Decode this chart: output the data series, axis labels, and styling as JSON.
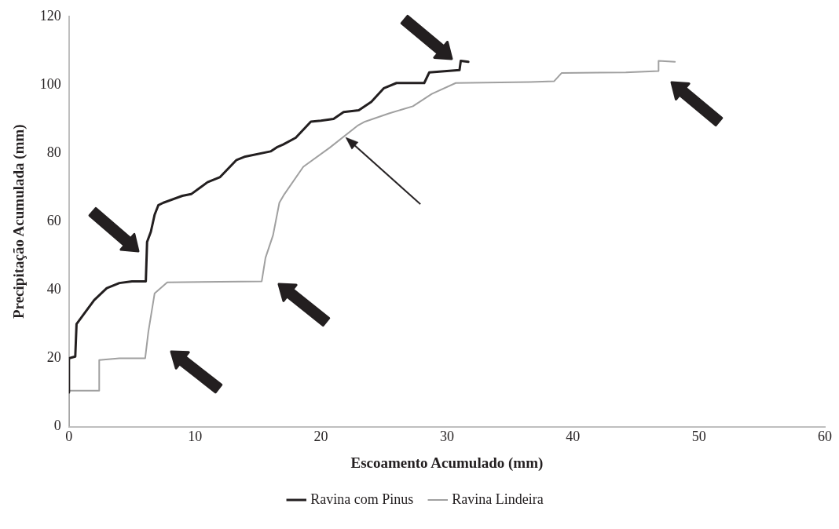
{
  "chart_data": {
    "type": "line",
    "xlabel": "Escoamento Acumulado (mm)",
    "ylabel": "Precipitação Acumulada (mm)",
    "xlim": [
      0,
      60
    ],
    "xticks": [
      0,
      10,
      20,
      30,
      40,
      50,
      60
    ],
    "ylim": [
      0,
      120
    ],
    "yticks": [
      0,
      20,
      40,
      60,
      80,
      100,
      120
    ],
    "grid": false,
    "legend": "bottom",
    "marker": "none",
    "line_style": "solid",
    "series": [
      {
        "name": "Ravina com Pinus",
        "color": "#231f20",
        "x": [
          0,
          0,
          0.5,
          0.6,
          1,
          2,
          3,
          4,
          5,
          6.1,
          6.2,
          6.5,
          6.8,
          7.1,
          7.5,
          9,
          9.7,
          11,
          12,
          13.3,
          14,
          16,
          16.5,
          17,
          18,
          19.2,
          20,
          21,
          21.8,
          23,
          24,
          25,
          26,
          28.2,
          28.6,
          30,
          31,
          31.1,
          31.7
        ],
        "values": [
          10,
          20,
          20.5,
          30,
          32,
          37,
          40.5,
          42,
          42.5,
          42.5,
          54,
          57,
          62,
          64.8,
          65.5,
          67.5,
          68,
          71.5,
          73,
          78,
          79,
          80.5,
          81.7,
          82.5,
          84.5,
          89.2,
          89.5,
          90,
          92,
          92.5,
          95,
          99,
          100.5,
          100.5,
          103.6,
          104,
          104.3,
          107,
          106.7
        ]
      },
      {
        "name": "Ravina Lindeira",
        "color": "#a0a0a0",
        "x": [
          0,
          0,
          0.3,
          2.4,
          2.4,
          4,
          6.05,
          6.3,
          6.8,
          7.8,
          15.3,
          15.6,
          16.2,
          16.7,
          17.1,
          18.6,
          20.7,
          22.9,
          23.5,
          25.4,
          27.3,
          28.8,
          30.7,
          36.6,
          38.5,
          39.1,
          44.2,
          46.8,
          46.8,
          48.1
        ],
        "values": [
          0,
          10.5,
          10.5,
          10.5,
          19.5,
          20,
          20,
          27.7,
          39,
          42.2,
          42.5,
          49.4,
          56,
          65.5,
          68,
          76,
          81.6,
          88,
          89.2,
          91.6,
          93.7,
          97.3,
          100.5,
          100.8,
          101,
          103.4,
          103.6,
          104,
          107,
          106.7
        ]
      }
    ]
  }
}
